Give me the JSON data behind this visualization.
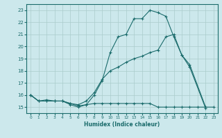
{
  "xlabel": "Humidex (Indice chaleur)",
  "xlim": [
    -0.5,
    23.5
  ],
  "ylim": [
    14.5,
    23.5
  ],
  "yticks": [
    15,
    16,
    17,
    18,
    19,
    20,
    21,
    22,
    23
  ],
  "xticks": [
    0,
    1,
    2,
    3,
    4,
    5,
    6,
    7,
    8,
    9,
    10,
    11,
    12,
    13,
    14,
    15,
    16,
    17,
    18,
    19,
    20,
    21,
    22,
    23
  ],
  "bg_color": "#cce8ec",
  "grid_color": "#aacccc",
  "line_color": "#1a6b6b",
  "line1_x": [
    0,
    1,
    2,
    3,
    4,
    5,
    6,
    7,
    8,
    9,
    10,
    11,
    12,
    13,
    14,
    15,
    16,
    17,
    18,
    19,
    20,
    22
  ],
  "line1_y": [
    16.0,
    15.5,
    15.5,
    15.5,
    15.5,
    15.2,
    15.0,
    15.2,
    16.0,
    17.2,
    19.5,
    20.8,
    21.0,
    22.3,
    22.3,
    23.0,
    22.8,
    22.5,
    20.8,
    19.3,
    18.3,
    14.9
  ],
  "line2_x": [
    0,
    1,
    2,
    3,
    4,
    5,
    6,
    7,
    8,
    9,
    10,
    11,
    12,
    13,
    14,
    15,
    16,
    17,
    18,
    19,
    20,
    22
  ],
  "line2_y": [
    16.0,
    15.5,
    15.5,
    15.5,
    15.5,
    15.3,
    15.2,
    15.5,
    16.2,
    17.3,
    18.0,
    18.3,
    18.7,
    19.0,
    19.2,
    19.5,
    19.7,
    20.8,
    21.0,
    19.3,
    18.5,
    15.0
  ],
  "line3_x": [
    0,
    1,
    2,
    3,
    4,
    5,
    6,
    7,
    8,
    9,
    10,
    11,
    12,
    13,
    14,
    15,
    16,
    17,
    18,
    19,
    20,
    21,
    22,
    23
  ],
  "line3_y": [
    16.0,
    15.5,
    15.6,
    15.5,
    15.5,
    15.3,
    15.1,
    15.2,
    15.3,
    15.3,
    15.3,
    15.3,
    15.3,
    15.3,
    15.3,
    15.3,
    15.0,
    15.0,
    15.0,
    15.0,
    15.0,
    15.0,
    15.0,
    15.0
  ]
}
